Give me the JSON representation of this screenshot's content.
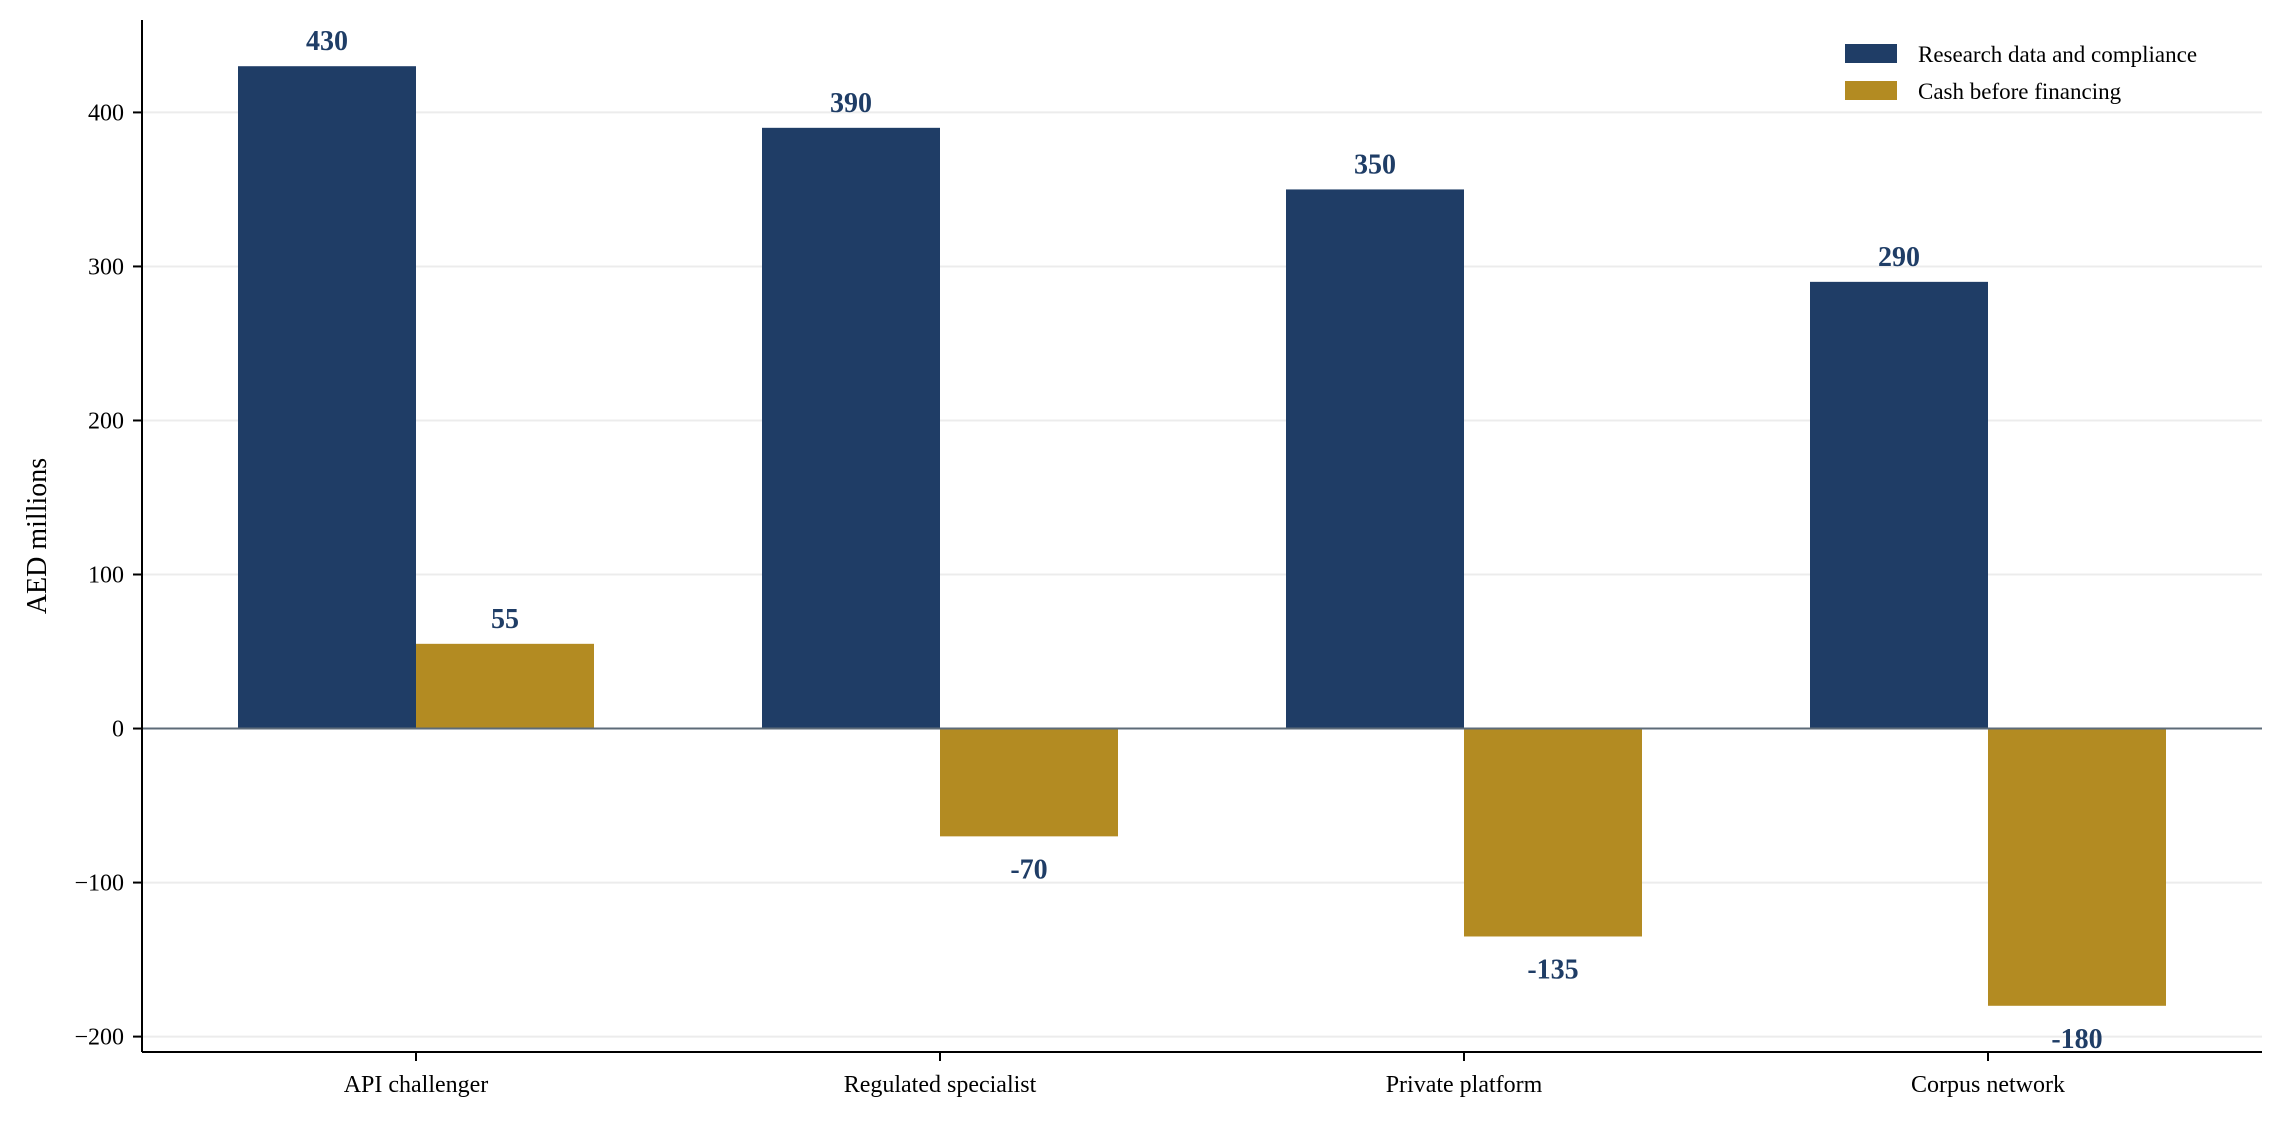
{
  "chart_data": {
    "type": "bar",
    "categories": [
      "API challenger",
      "Regulated specialist",
      "Private platform",
      "Corpus network"
    ],
    "series": [
      {
        "name": "Research data and compliance",
        "values": [
          430,
          390,
          350,
          290
        ],
        "color": "#1f3d66"
      },
      {
        "name": "Cash before financing",
        "values": [
          55,
          -70,
          -135,
          -180
        ],
        "color": "#b38b22"
      }
    ],
    "xlabel": "",
    "ylabel": "AED millions",
    "ylim": [
      -210,
      460
    ],
    "yticks": [
      -200,
      -100,
      0,
      100,
      200,
      300,
      400
    ],
    "grid": "horizontal",
    "legend": "top-right",
    "label_color": "#1f3d66"
  }
}
